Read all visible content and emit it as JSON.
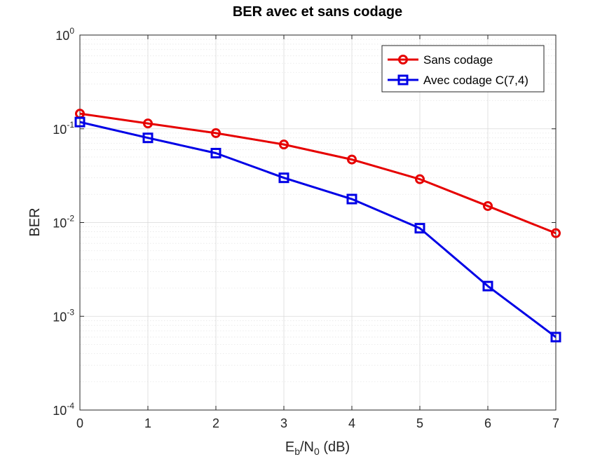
{
  "chart_data": {
    "type": "line",
    "title": "BER avec et sans codage",
    "xlabel": {
      "base": "E",
      "sub1": "b",
      "mid": "/N",
      "sub2": "0",
      "tail": " (dB)"
    },
    "ylabel": "BER",
    "x": [
      0,
      1,
      2,
      3,
      4,
      5,
      6,
      7
    ],
    "xlim": [
      0,
      7
    ],
    "ylim": [
      0.0001,
      1
    ],
    "yscale": "log",
    "grid": true,
    "legend_position": "top-right",
    "x_ticks": [
      "0",
      "1",
      "2",
      "3",
      "4",
      "5",
      "6",
      "7"
    ],
    "y_ticks": [
      {
        "base": "10",
        "exp": "0",
        "value": 1
      },
      {
        "base": "10",
        "exp": "-1",
        "value": 0.1
      },
      {
        "base": "10",
        "exp": "-2",
        "value": 0.01
      },
      {
        "base": "10",
        "exp": "-3",
        "value": 0.001
      },
      {
        "base": "10",
        "exp": "-4",
        "value": 0.0001
      }
    ],
    "series": [
      {
        "name": "Sans codage",
        "color": "#e60000",
        "marker": "circle",
        "values": [
          0.145,
          0.114,
          0.09,
          0.068,
          0.047,
          0.029,
          0.015,
          0.0077
        ]
      },
      {
        "name": "Avec codage C(7,4)",
        "color": "#0000e6",
        "marker": "square",
        "values": [
          0.118,
          0.08,
          0.055,
          0.03,
          0.0178,
          0.0087,
          0.0021,
          0.0006
        ]
      }
    ]
  }
}
